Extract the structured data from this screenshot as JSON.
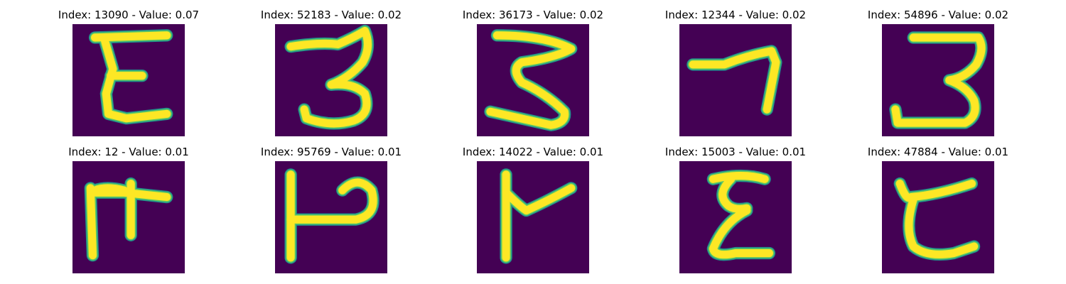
{
  "colors": {
    "background": "#440154",
    "stroke_core": "#fde725",
    "stroke_edge": "#21918c",
    "stroke_mid": "#5ec962"
  },
  "panels": [
    {
      "title": "Index: 13090 - Value: 0.07",
      "glyph": "E"
    },
    {
      "title": "Index: 52183 - Value: 0.02",
      "glyph": "3"
    },
    {
      "title": "Index: 36173 - Value: 0.02",
      "glyph": "3"
    },
    {
      "title": "Index: 12344 - Value: 0.02",
      "glyph": "7"
    },
    {
      "title": "Index: 54896 - Value: 0.02",
      "glyph": "3"
    },
    {
      "title": "Index: 12 - Value: 0.01",
      "glyph": ""
    },
    {
      "title": "Index: 95769 - Value: 0.01",
      "glyph": ""
    },
    {
      "title": "Index: 14022 - Value: 0.01",
      "glyph": ""
    },
    {
      "title": "Index: 15003 - Value: 0.01",
      "glyph": ""
    },
    {
      "title": "Index: 47884 - Value: 0.01",
      "glyph": ""
    }
  ]
}
